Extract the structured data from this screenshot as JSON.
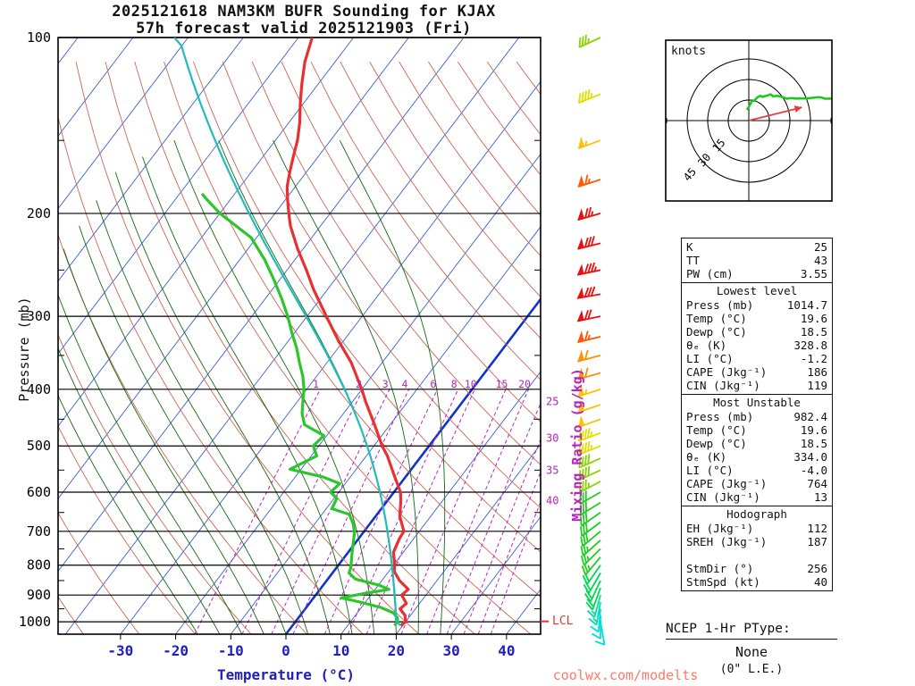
{
  "title": {
    "line1": "2025121618 NAM3KM BUFR Sounding for KJAX",
    "line2": "57h forecast valid 2025121903 (Fri)"
  },
  "watermark": "coolwx.com/modelts",
  "axes": {
    "pressure_label": "Pressure (mb)",
    "temp_label": "Temperature (°C)",
    "mixing_label": "Mixing Ratio (g/kg)",
    "lcl_label": "LCL",
    "pressure_ticks": [
      100,
      200,
      300,
      400,
      500,
      600,
      700,
      800,
      900,
      1000
    ],
    "temp_ticks": [
      -30,
      -20,
      -10,
      0,
      10,
      20,
      30,
      40
    ]
  },
  "colors": {
    "temperature": "#e83030",
    "dewpoint": "#2cc52c",
    "parcel": "#22bbbb",
    "isotherm": "#3a5fd0",
    "zero_isotherm": "#1133cc",
    "dry_adiabat": "#cc6655",
    "moist_adiabat": "#156915",
    "mixing_ratio": "#bb22bb",
    "temp_axis_text": "#2020c0",
    "lcl": "#e83333",
    "storm_motion": "#e04040",
    "hodo_trace": "#18c818"
  },
  "chart_data": {
    "type": "skewt-sounding",
    "pressure_top_mb": 100,
    "pressure_bottom_mb": 1050,
    "temperature_profile": [
      [
        1014.7,
        19.6
      ],
      [
        1000,
        20.0
      ],
      [
        975,
        19.0
      ],
      [
        950,
        17.2
      ],
      [
        930,
        17.6
      ],
      [
        900,
        15.6
      ],
      [
        880,
        16.0
      ],
      [
        850,
        13.2
      ],
      [
        820,
        11.0
      ],
      [
        800,
        10.2
      ],
      [
        760,
        8.2
      ],
      [
        720,
        7.4
      ],
      [
        700,
        7.2
      ],
      [
        660,
        4.4
      ],
      [
        620,
        2.4
      ],
      [
        600,
        1.2
      ],
      [
        560,
        -2.4
      ],
      [
        520,
        -6.2
      ],
      [
        500,
        -8.5
      ],
      [
        460,
        -12.8
      ],
      [
        420,
        -17.6
      ],
      [
        400,
        -20.0
      ],
      [
        360,
        -25.6
      ],
      [
        330,
        -31.0
      ],
      [
        300,
        -36.5
      ],
      [
        270,
        -42.5
      ],
      [
        250,
        -46.5
      ],
      [
        230,
        -51.0
      ],
      [
        210,
        -55.5
      ],
      [
        200,
        -57.5
      ],
      [
        190,
        -59.5
      ],
      [
        180,
        -61.5
      ],
      [
        170,
        -63.0
      ],
      [
        160,
        -64.5
      ],
      [
        150,
        -66.0
      ],
      [
        140,
        -68.0
      ],
      [
        130,
        -70.5
      ],
      [
        120,
        -73.0
      ],
      [
        110,
        -75.5
      ],
      [
        100,
        -77.5
      ]
    ],
    "dewpoint_profile": [
      [
        1014.7,
        18.5
      ],
      [
        1000,
        18.5
      ],
      [
        985,
        18.0
      ],
      [
        965,
        16.5
      ],
      [
        945,
        13.5
      ],
      [
        925,
        9.0
      ],
      [
        910,
        5.0
      ],
      [
        895,
        8.5
      ],
      [
        880,
        12.5
      ],
      [
        865,
        10.0
      ],
      [
        845,
        5.0
      ],
      [
        825,
        3.0
      ],
      [
        805,
        2.5
      ],
      [
        780,
        1.5
      ],
      [
        755,
        0.5
      ],
      [
        730,
        -0.5
      ],
      [
        705,
        -1.5
      ],
      [
        680,
        -3.0
      ],
      [
        655,
        -5.0
      ],
      [
        640,
        -9.0
      ],
      [
        615,
        -9.5
      ],
      [
        600,
        -11.5
      ],
      [
        580,
        -11.0
      ],
      [
        565,
        -15.0
      ],
      [
        548,
        -22.0
      ],
      [
        520,
        -19.0
      ],
      [
        500,
        -21.0
      ],
      [
        480,
        -20.5
      ],
      [
        460,
        -25.5
      ],
      [
        440,
        -27.5
      ],
      [
        420,
        -29.0
      ],
      [
        400,
        -30.5
      ],
      [
        380,
        -32.5
      ],
      [
        360,
        -35.0
      ],
      [
        340,
        -37.5
      ],
      [
        320,
        -40.5
      ],
      [
        300,
        -43.5
      ],
      [
        280,
        -47.0
      ],
      [
        260,
        -51.0
      ],
      [
        240,
        -55.5
      ],
      [
        220,
        -61.0
      ],
      [
        200,
        -70.0
      ],
      [
        190,
        -74.0
      ],
      [
        185,
        -76.0
      ]
    ],
    "parcel": {
      "start_p": 1014.7,
      "start_T": 19.6,
      "start_Td": 18.5
    },
    "isotherms_c": {
      "min": -120,
      "max": 40,
      "step": 10
    },
    "dry_adiabats_theta_c": {
      "min": -40,
      "max": 200,
      "step": 10
    },
    "moist_adiabats_start_c": {
      "min": -16,
      "max": 28,
      "step": 4
    },
    "mixing_ratios_gkg": [
      1,
      2,
      3,
      4,
      6,
      8,
      10,
      15,
      20,
      25,
      30,
      35,
      40
    ],
    "wind_barbs": [
      [
        1000,
        170,
        8
      ],
      [
        975,
        180,
        10
      ],
      [
        950,
        185,
        12
      ],
      [
        925,
        190,
        15
      ],
      [
        900,
        195,
        15
      ],
      [
        875,
        200,
        18
      ],
      [
        850,
        205,
        20
      ],
      [
        825,
        210,
        20
      ],
      [
        800,
        215,
        22
      ],
      [
        775,
        220,
        25
      ],
      [
        750,
        225,
        25
      ],
      [
        725,
        228,
        27
      ],
      [
        700,
        230,
        28
      ],
      [
        675,
        233,
        29
      ],
      [
        650,
        235,
        30
      ],
      [
        625,
        238,
        31
      ],
      [
        600,
        240,
        32
      ],
      [
        575,
        242,
        35
      ],
      [
        550,
        245,
        38
      ],
      [
        525,
        246,
        40
      ],
      [
        500,
        248,
        43
      ],
      [
        475,
        249,
        45
      ],
      [
        450,
        250,
        48
      ],
      [
        425,
        251,
        52
      ],
      [
        400,
        252,
        55
      ],
      [
        375,
        254,
        58
      ],
      [
        350,
        255,
        62
      ],
      [
        325,
        256,
        67
      ],
      [
        300,
        258,
        72
      ],
      [
        275,
        260,
        78
      ],
      [
        250,
        258,
        85
      ],
      [
        225,
        256,
        82
      ],
      [
        200,
        254,
        75
      ],
      [
        175,
        252,
        65
      ],
      [
        150,
        250,
        55
      ],
      [
        125,
        248,
        45
      ],
      [
        100,
        245,
        35
      ]
    ],
    "hodograph": {
      "label": "knots",
      "rings_kt": [
        15,
        30,
        45
      ],
      "storm_motion_dir": 256,
      "storm_motion_kt": 40,
      "trace_top_mb": 300
    }
  },
  "stats_table": {
    "top": [
      [
        "K",
        "25"
      ],
      [
        "TT",
        "43"
      ],
      [
        "PW (cm)",
        "3.55"
      ]
    ],
    "sections": [
      {
        "header": "Lowest level",
        "rows": [
          [
            "Press (mb)",
            "1014.7"
          ],
          [
            "Temp (°C)",
            "19.6"
          ],
          [
            "Dewp (°C)",
            "18.5"
          ],
          [
            "θₑ (K)",
            "328.8"
          ],
          [
            "LI (°C)",
            "-1.2"
          ],
          [
            "CAPE (Jkg⁻¹)",
            "186"
          ],
          [
            "CIN (Jkg⁻¹)",
            "119"
          ]
        ]
      },
      {
        "header": "Most Unstable",
        "rows": [
          [
            "Press (mb)",
            "982.4"
          ],
          [
            "Temp (°C)",
            "19.6"
          ],
          [
            "Dewp (°C)",
            "18.5"
          ],
          [
            "θₑ (K)",
            "334.0"
          ],
          [
            "LI (°C)",
            "-4.0"
          ],
          [
            "CAPE (Jkg⁻¹)",
            "764"
          ],
          [
            "CIN (Jkg⁻¹)",
            "13"
          ]
        ]
      },
      {
        "header": "Hodograph",
        "rows": [
          [
            "EH (Jkg⁻¹)",
            "112"
          ],
          [
            "SREH (Jkg⁻¹)",
            "187"
          ],
          [
            "",
            ""
          ],
          [
            "StmDir (°)",
            "256"
          ],
          [
            "StmSpd (kt)",
            "40"
          ]
        ]
      }
    ]
  },
  "ptype": {
    "title": "NCEP 1-Hr PType:",
    "value": "None",
    "extra": "(0\" L.E.)"
  }
}
